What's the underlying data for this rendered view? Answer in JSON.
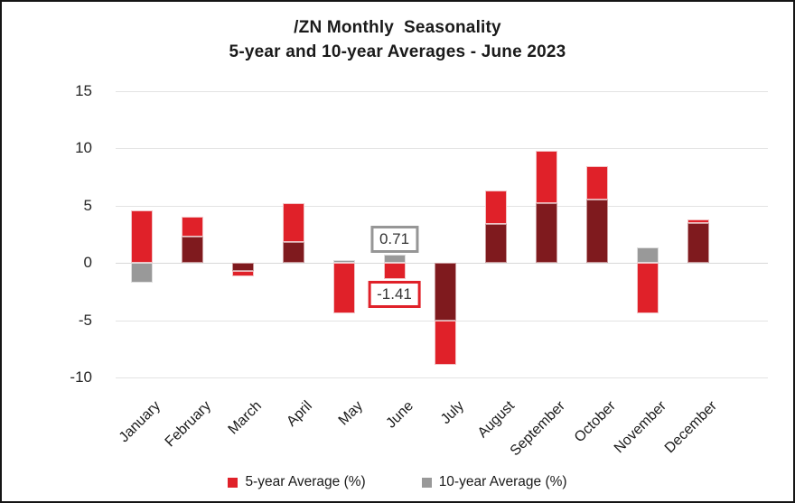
{
  "title": {
    "line1": "/ZN Monthly  Seasonality",
    "line2": "5-year and 10-year Averages - June 2023"
  },
  "chart_data": {
    "type": "bar",
    "title": "/ZN Monthly Seasonality — 5-year and 10-year Averages - June 2023",
    "categories": [
      "January",
      "February",
      "March",
      "April",
      "May",
      "June",
      "July",
      "August",
      "September",
      "October",
      "November",
      "December"
    ],
    "series": [
      {
        "name": "5-year Average (%)",
        "color": "#e02129",
        "values": [
          4.6,
          4.0,
          -1.2,
          5.2,
          -4.4,
          -1.41,
          -8.9,
          6.3,
          9.8,
          8.4,
          -4.4,
          3.8
        ]
      },
      {
        "name": "10-year Average (%)",
        "color": "#999999",
        "values": [
          -1.7,
          2.3,
          -0.7,
          1.8,
          0.2,
          0.71,
          -5.0,
          3.4,
          5.2,
          5.5,
          1.3,
          3.5
        ]
      }
    ],
    "overlap_color": "#7f1a1e",
    "y_ticks": [
      15,
      10,
      5,
      0,
      -5,
      -10
    ],
    "ylim": [
      -10,
      15
    ],
    "xlabel": "",
    "ylabel": "",
    "grid": true,
    "legend_position": "bottom",
    "bar_style": "overlapped",
    "annotations": [
      {
        "text": "0.71",
        "month": "June",
        "series": "10-year Average (%)",
        "position": "above",
        "border_color": "#969696"
      },
      {
        "text": "-1.41",
        "month": "June",
        "series": "5-year Average (%)",
        "position": "below",
        "border_color": "#e02129"
      }
    ]
  },
  "colors": {
    "bar_red": "#e02129",
    "bar_gray": "#999999",
    "bar_overlap": "#7f1a1e",
    "gridline": "#e3e3e3",
    "frame_border": "#151515",
    "text": "#1a1a1a"
  }
}
